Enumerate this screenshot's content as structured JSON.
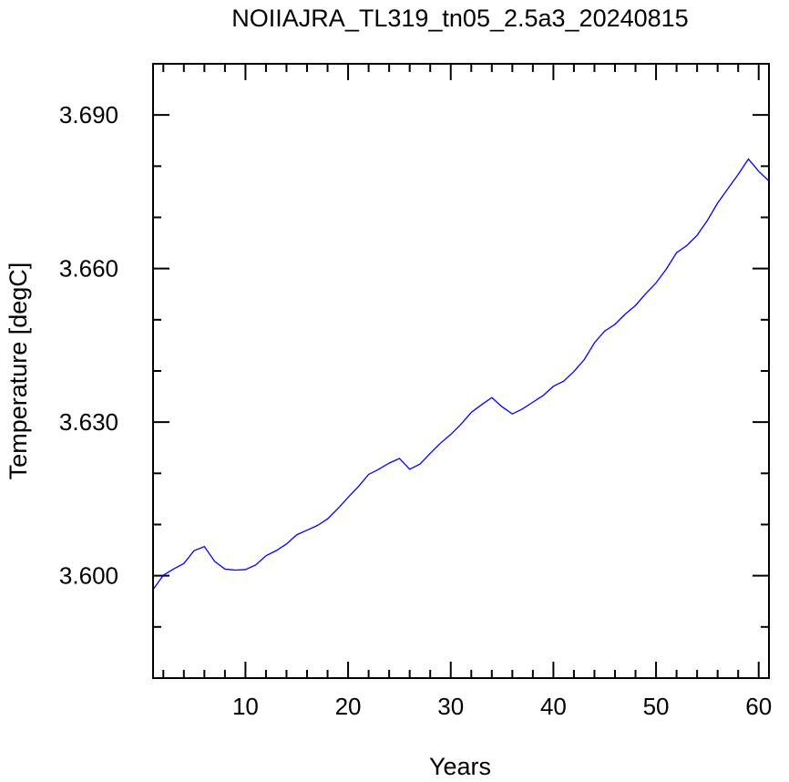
{
  "chart_data": {
    "type": "line",
    "title": "NOIIAJRA_TL319_tn05_2.5a3_20240815",
    "xlabel": "Years",
    "ylabel": "Temperature [degC]",
    "xlim": [
      1,
      61
    ],
    "ylim": [
      3.58,
      3.7
    ],
    "x_major_ticks": [
      10,
      20,
      30,
      40,
      50,
      60
    ],
    "x_tick_labels": [
      "10",
      "20",
      "30",
      "40",
      "50",
      "60"
    ],
    "x_minor_step": 2,
    "y_major_ticks": [
      3.6,
      3.63,
      3.66,
      3.69
    ],
    "y_tick_labels": [
      "3.600",
      "3.630",
      "3.660",
      "3.690"
    ],
    "y_minor_step": 0.01,
    "grid": false,
    "legend": "none",
    "line_color": "#0000ff",
    "series": [
      {
        "x": [
          1,
          2,
          3,
          4,
          5,
          6,
          7,
          8,
          9,
          10,
          11,
          12,
          13,
          14,
          15,
          16,
          17,
          18,
          19,
          20,
          21,
          22,
          23,
          24,
          25,
          26,
          27,
          28,
          29,
          30,
          31,
          32,
          33,
          34,
          35,
          36,
          37,
          38,
          39,
          40,
          41,
          42,
          43,
          44,
          45,
          46,
          47,
          48,
          49,
          50,
          51,
          52,
          53,
          54,
          55,
          56,
          57,
          58,
          59,
          60,
          61
        ],
        "values": [
          3.5973,
          3.6001,
          3.6013,
          3.6024,
          3.6049,
          3.6057,
          3.6028,
          3.6013,
          3.6011,
          3.6012,
          3.6021,
          3.6039,
          3.6049,
          3.6062,
          3.608,
          3.6089,
          3.6098,
          3.6111,
          3.6131,
          3.6153,
          3.6174,
          3.6198,
          3.6208,
          3.622,
          3.6229,
          3.6208,
          3.6218,
          3.6239,
          3.6259,
          3.6276,
          3.6296,
          3.6319,
          3.6334,
          3.6348,
          3.633,
          3.6316,
          3.6326,
          3.6339,
          3.6352,
          3.637,
          3.638,
          3.6399,
          3.6422,
          3.6455,
          3.6478,
          3.6491,
          3.6511,
          3.6528,
          3.6551,
          3.6572,
          3.6599,
          3.6631,
          3.6645,
          3.6665,
          3.6694,
          3.6728,
          3.6756,
          3.6784,
          3.6814,
          3.679,
          3.6771
        ]
      }
    ]
  }
}
